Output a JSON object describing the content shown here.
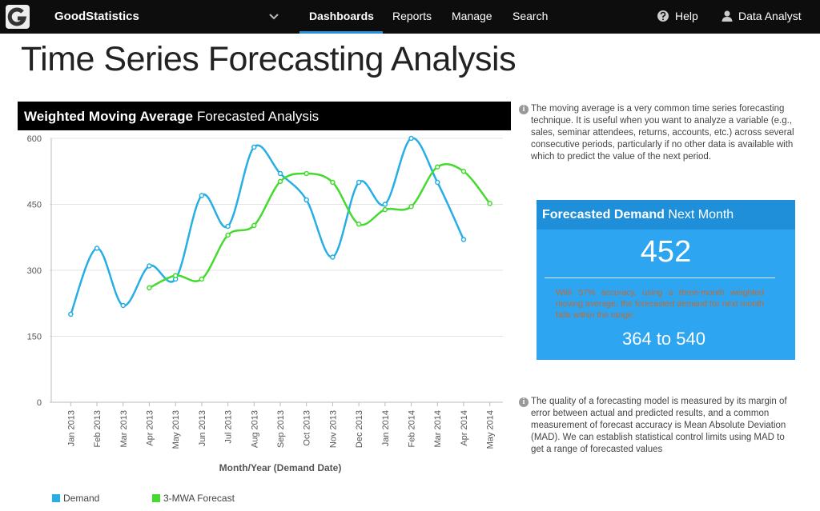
{
  "nav": {
    "brand": "GoodStatistics",
    "items": [
      "Dashboards",
      "Reports",
      "Manage",
      "Search"
    ],
    "help": "Help",
    "user": "Data Analyst"
  },
  "page_title": "Time Series Forecasting Analysis",
  "chart_data": {
    "type": "line",
    "title": "Weighted Moving Average",
    "subtitle": "Forecasted Analysis",
    "x_label": "Month/Year (Demand Date)",
    "categories": [
      "Jan 2013",
      "Feb 2013",
      "Mar 2013",
      "Apr 2013",
      "May 2013",
      "Jun 2013",
      "Jul 2013",
      "Aug 2013",
      "Sep 2013",
      "Oct 2013",
      "Nov 2013",
      "Dec 2013",
      "Jan 2014",
      "Feb 2014",
      "Mar 2014",
      "Apr 2014",
      "May 2014"
    ],
    "series": [
      {
        "name": "Demand",
        "color": "#27aee4",
        "values": [
          200,
          350,
          220,
          310,
          280,
          470,
          400,
          580,
          520,
          460,
          330,
          500,
          450,
          600,
          500,
          370,
          null
        ]
      },
      {
        "name": "3-MWA Forecast",
        "color": "#45da30",
        "values": [
          null,
          null,
          null,
          260,
          288,
          280,
          380,
          402,
          502,
          520,
          500,
          405,
          438,
          445,
          535,
          525,
          452
        ]
      }
    ],
    "ylim": [
      0,
      600
    ],
    "yticks": [
      0,
      150,
      300,
      450,
      600
    ],
    "grid": true,
    "smooth": true
  },
  "info_top": "The moving average is a very common time series forecasting technique.  It is useful when you want to analyze a variable (e.g., sales, seminar attendees, returns, accounts, etc.) across several consecutive periods, particularly if no other data is available with which to predict the value of the next period.",
  "forecast_box": {
    "title": "Forecasted Demand",
    "subtitle": "Next Month",
    "value": 452,
    "note": "With 57% accuracy, using a three-month weighted moving average, the forecasted demand for next month falls within the range:",
    "range": "364 to 540"
  },
  "info_bottom": "The quality of a forecasting model is measured by its margin of error between actual and predicted results, and a common measurement of forecast accuracy is Mean Absolute Deviation (MAD). We can establish statistical control limits using MAD to get a range of forecasted values"
}
